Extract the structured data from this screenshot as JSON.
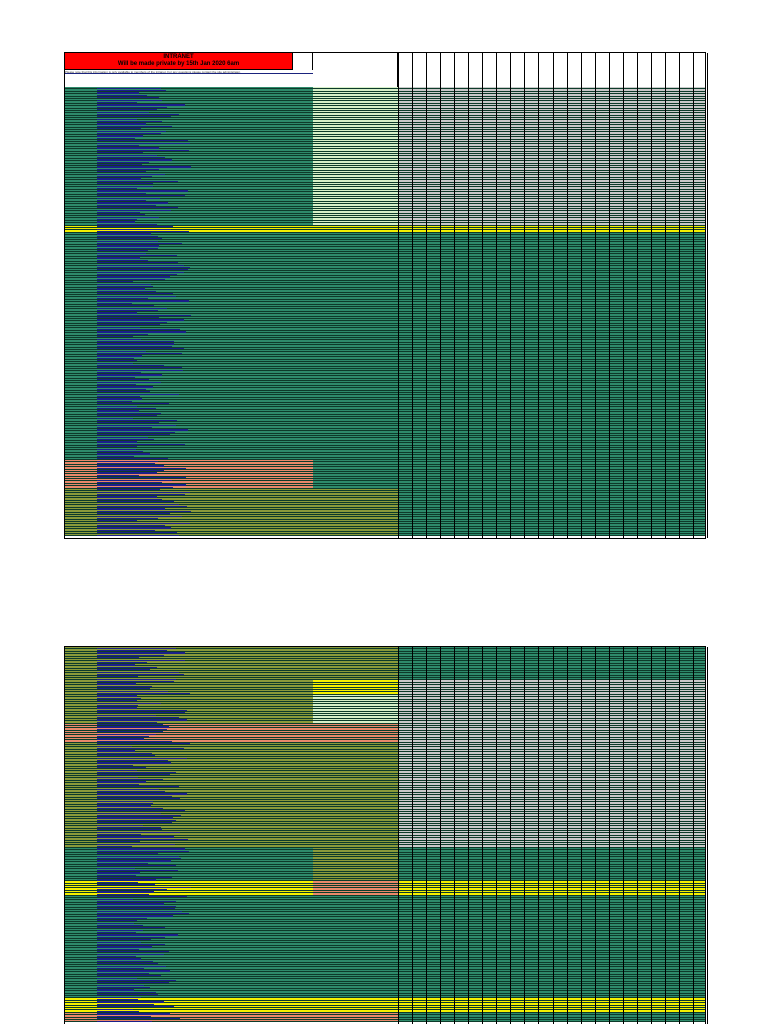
{
  "header": {
    "title_line1": "INTRANET",
    "title_line2": "Will be made private by 15th Jan 2020 6am",
    "note": "Please note that this information is only available to members of the intranet. For any questions please contact the site administrator."
  },
  "colors": {
    "header_red": "#ff0000",
    "teal": "#2e8b6b",
    "light_teal": "#5fa98a",
    "pale_green": "#d7f0c8",
    "olive": "#8a9a3a",
    "yellow": "#f4f000",
    "salmon": "#e9886a",
    "gray": "#c9c9c9",
    "navy": "#1b1f8a"
  },
  "sheet1": {
    "row_count": 188,
    "bands": [
      {
        "rows": 58,
        "left": "teal",
        "mid": "pale_green",
        "right": "gray"
      },
      {
        "rows": 3,
        "left": "yellow",
        "mid": "yellow",
        "right": "yellow"
      },
      {
        "rows": 95,
        "left": "teal",
        "mid": "teal",
        "right": "teal"
      },
      {
        "rows": 12,
        "left": "salmon",
        "mid": "teal",
        "right": "teal"
      },
      {
        "rows": 20,
        "left": "olive",
        "mid": "olive",
        "right": "teal"
      }
    ]
  },
  "sheet2": {
    "row_count": 157,
    "bands": [
      {
        "rows": 14,
        "left": "olive",
        "mid": "olive",
        "right": "teal"
      },
      {
        "rows": 6,
        "left": "olive",
        "mid": "yellow",
        "right": "gray"
      },
      {
        "rows": 12,
        "left": "olive",
        "mid": "pale_green",
        "right": "gray"
      },
      {
        "rows": 8,
        "left": "salmon",
        "mid": "salmon",
        "right": "gray"
      },
      {
        "rows": 44,
        "left": "olive",
        "mid": "olive",
        "right": "gray"
      },
      {
        "rows": 14,
        "left": "teal",
        "mid": "olive",
        "right": "teal"
      },
      {
        "rows": 6,
        "left": "yellow",
        "mid": "salmon",
        "right": "yellow"
      },
      {
        "rows": 43,
        "left": "teal",
        "mid": "teal",
        "right": "teal"
      },
      {
        "rows": 6,
        "left": "yellow",
        "mid": "yellow",
        "right": "yellow"
      },
      {
        "rows": 4,
        "left": "salmon",
        "mid": "salmon",
        "right": "teal"
      }
    ]
  }
}
